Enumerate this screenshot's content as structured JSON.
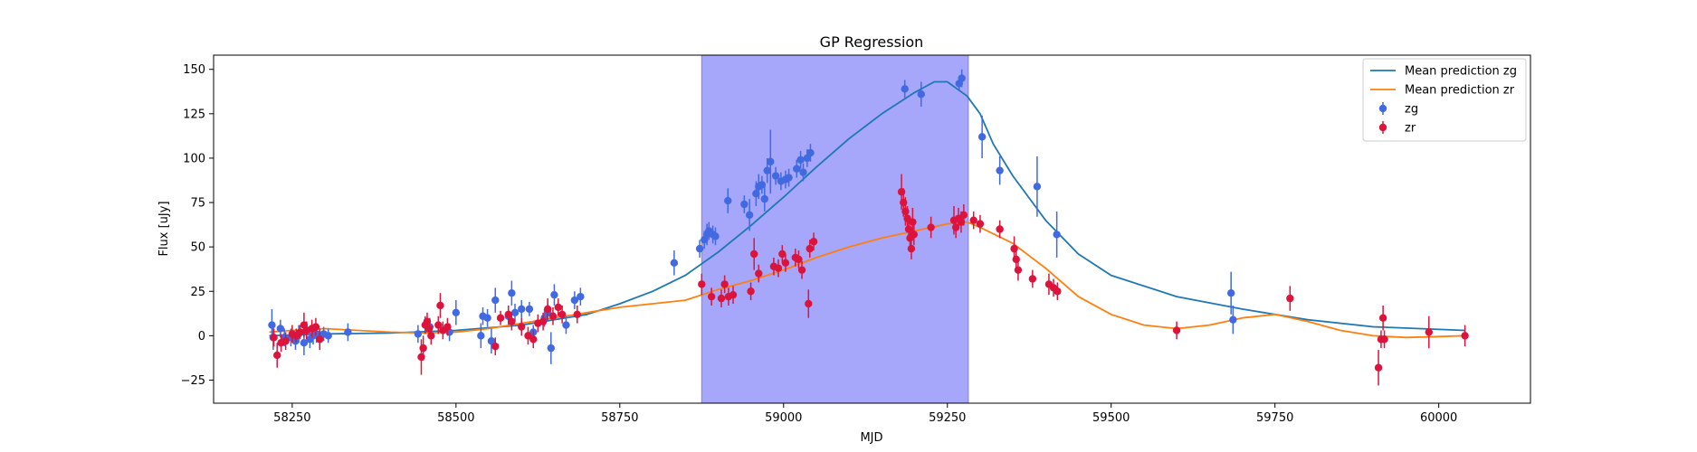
{
  "chart_data": {
    "type": "scatter",
    "title": "GP Regression",
    "xlabel": "MJD",
    "ylabel": "Flux [uJy]",
    "xlim": [
      58130,
      60140
    ],
    "ylim": [
      -38,
      158
    ],
    "x_ticks": [
      58250,
      58500,
      58750,
      59000,
      59250,
      59500,
      59750,
      60000
    ],
    "y_ticks": [
      -25,
      0,
      25,
      50,
      75,
      100,
      125,
      150
    ],
    "x_tick_labels": [
      "58250",
      "58500",
      "58750",
      "59000",
      "59250",
      "59500",
      "59750",
      "60000"
    ],
    "y_tick_labels": [
      "−25",
      "0",
      "25",
      "50",
      "75",
      "100",
      "125",
      "150"
    ],
    "grid": false,
    "legend_placement": "top-right",
    "shaded_region": {
      "x_start": 58875,
      "x_end": 59282,
      "color": "#a6a6fb"
    },
    "series": [
      {
        "name": "Mean prediction zg",
        "kind": "line",
        "color": "#1f77b4",
        "x": [
          58215,
          58300,
          58400,
          58500,
          58600,
          58700,
          58750,
          58800,
          58850,
          58900,
          58950,
          59000,
          59050,
          59100,
          59150,
          59200,
          59230,
          59250,
          59280,
          59300,
          59320,
          59350,
          59400,
          59450,
          59500,
          59600,
          59700,
          59800,
          59900,
          60040
        ],
        "y": [
          0,
          1,
          1.5,
          3,
          6,
          12,
          18,
          25,
          34,
          47,
          62,
          78,
          95,
          111,
          125,
          137,
          143,
          143,
          135,
          125,
          108,
          90,
          65,
          46,
          34,
          22,
          15,
          9,
          5,
          3
        ]
      },
      {
        "name": "Mean prediction zr",
        "kind": "line",
        "color": "#ff7f0e",
        "x": [
          58215,
          58250,
          58300,
          58350,
          58400,
          58450,
          58500,
          58550,
          58600,
          58650,
          58700,
          58750,
          58800,
          58850,
          58875,
          58900,
          58950,
          59000,
          59050,
          59100,
          59150,
          59200,
          59250,
          59280,
          59300,
          59350,
          59400,
          59450,
          59500,
          59550,
          59600,
          59650,
          59700,
          59750,
          59800,
          59850,
          59900,
          59950,
          60000,
          60040
        ],
        "y": [
          2,
          3,
          4,
          3,
          2,
          1.5,
          2,
          4,
          7,
          10,
          13,
          16,
          18,
          20,
          23,
          26,
          31,
          37,
          44,
          50,
          55,
          59,
          63,
          64,
          61,
          52,
          38,
          22,
          12,
          6,
          4,
          6,
          10,
          12,
          8,
          3,
          0,
          -1,
          -0.5,
          0
        ]
      },
      {
        "name": "zg",
        "kind": "errorbar",
        "color": "#4169e1",
        "points": [
          [
            58219,
            6,
            9
          ],
          [
            58221,
            -1,
            7
          ],
          [
            58232,
            4,
            5
          ],
          [
            58238,
            -1,
            5
          ],
          [
            58248,
            -1,
            5
          ],
          [
            58255,
            -3,
            5
          ],
          [
            58260,
            1,
            5
          ],
          [
            58268,
            -4,
            7
          ],
          [
            58272,
            3,
            5
          ],
          [
            58277,
            -2,
            5
          ],
          [
            58282,
            0,
            5
          ],
          [
            58287,
            1,
            5
          ],
          [
            58298,
            1,
            4
          ],
          [
            58305,
            0,
            4
          ],
          [
            58335,
            2,
            5
          ],
          [
            58442,
            1,
            5
          ],
          [
            58460,
            5,
            5
          ],
          [
            58490,
            2,
            5
          ],
          [
            58500,
            13,
            7
          ],
          [
            58538,
            0,
            7
          ],
          [
            58541,
            11,
            5
          ],
          [
            58548,
            10,
            5
          ],
          [
            58554,
            -3,
            7
          ],
          [
            58560,
            20,
            7
          ],
          [
            58580,
            11,
            5
          ],
          [
            58585,
            24,
            7
          ],
          [
            58590,
            13,
            5
          ],
          [
            58600,
            15,
            5
          ],
          [
            58612,
            15,
            4
          ],
          [
            58618,
            2,
            4
          ],
          [
            58635,
            10,
            5
          ],
          [
            58640,
            13,
            5
          ],
          [
            58645,
            -7,
            9
          ],
          [
            58650,
            23,
            6
          ],
          [
            58668,
            6,
            5
          ],
          [
            58681,
            20,
            5
          ],
          [
            58690,
            22,
            5
          ],
          [
            58833,
            41,
            7
          ],
          [
            58872,
            49,
            5
          ],
          [
            58879,
            54,
            5
          ],
          [
            58883,
            57,
            6
          ],
          [
            58886,
            59,
            5
          ],
          [
            58892,
            57,
            5
          ],
          [
            58896,
            56,
            5
          ],
          [
            58915,
            76,
            7
          ],
          [
            58940,
            74,
            5
          ],
          [
            58948,
            68,
            9
          ],
          [
            58958,
            80,
            7
          ],
          [
            58962,
            84,
            7
          ],
          [
            58967,
            85,
            5
          ],
          [
            58971,
            77,
            7
          ],
          [
            58975,
            93,
            7
          ],
          [
            58980,
            98,
            18
          ],
          [
            58988,
            90,
            5
          ],
          [
            58996,
            87,
            5
          ],
          [
            59003,
            88,
            5
          ],
          [
            59008,
            89,
            5
          ],
          [
            59020,
            94,
            5
          ],
          [
            59026,
            99,
            5
          ],
          [
            59030,
            92,
            5
          ],
          [
            59036,
            100,
            5
          ],
          [
            59041,
            103,
            5
          ],
          [
            59185,
            139,
            5
          ],
          [
            59210,
            136,
            7
          ],
          [
            59268,
            142,
            4
          ],
          [
            59272,
            145,
            5
          ],
          [
            59303,
            112,
            12
          ],
          [
            59330,
            93,
            8
          ],
          [
            59387,
            84,
            17
          ],
          [
            59417,
            57,
            13
          ],
          [
            59683,
            24,
            12
          ],
          [
            59686,
            9,
            8
          ]
        ]
      },
      {
        "name": "zr",
        "kind": "errorbar",
        "color": "#dc143c",
        "points": [
          [
            58222,
            -1,
            5
          ],
          [
            58227,
            -11,
            7
          ],
          [
            58233,
            -4,
            5
          ],
          [
            58240,
            -3,
            5
          ],
          [
            58250,
            1,
            5
          ],
          [
            58256,
            0,
            4
          ],
          [
            58262,
            2,
            4
          ],
          [
            58268,
            6,
            7
          ],
          [
            58272,
            3,
            5
          ],
          [
            58280,
            4,
            5
          ],
          [
            58286,
            5,
            5
          ],
          [
            58292,
            -2,
            6
          ],
          [
            58447,
            -12,
            10
          ],
          [
            58450,
            -7,
            7
          ],
          [
            58453,
            6,
            5
          ],
          [
            58456,
            8,
            5
          ],
          [
            58459,
            4,
            5
          ],
          [
            58462,
            0,
            5
          ],
          [
            58473,
            6,
            5
          ],
          [
            58476,
            17,
            7
          ],
          [
            58480,
            3,
            5
          ],
          [
            58487,
            5,
            5
          ],
          [
            58560,
            -6,
            5
          ],
          [
            58568,
            10,
            4
          ],
          [
            58580,
            12,
            5
          ],
          [
            58585,
            8,
            5
          ],
          [
            58600,
            5,
            5
          ],
          [
            58610,
            0,
            5
          ],
          [
            58618,
            -2,
            5
          ],
          [
            58625,
            7,
            5
          ],
          [
            58633,
            8,
            5
          ],
          [
            58640,
            15,
            6
          ],
          [
            58648,
            11,
            5
          ],
          [
            58656,
            16,
            5
          ],
          [
            58662,
            12,
            5
          ],
          [
            58685,
            12,
            5
          ],
          [
            58875,
            29,
            6
          ],
          [
            58890,
            22,
            5
          ],
          [
            58905,
            21,
            5
          ],
          [
            58910,
            29,
            5
          ],
          [
            58916,
            22,
            5
          ],
          [
            58923,
            23,
            5
          ],
          [
            58950,
            25,
            5
          ],
          [
            58955,
            46,
            9
          ],
          [
            58962,
            35,
            5
          ],
          [
            58985,
            39,
            5
          ],
          [
            58992,
            38,
            5
          ],
          [
            58998,
            46,
            5
          ],
          [
            59003,
            41,
            5
          ],
          [
            59018,
            44,
            5
          ],
          [
            59023,
            43,
            5
          ],
          [
            59028,
            37,
            5
          ],
          [
            59038,
            18,
            8
          ],
          [
            59040,
            49,
            5
          ],
          [
            59046,
            53,
            5
          ],
          [
            59180,
            81,
            10
          ],
          [
            59183,
            75,
            8
          ],
          [
            59186,
            70,
            8
          ],
          [
            59189,
            66,
            7
          ],
          [
            59191,
            60,
            7
          ],
          [
            59193,
            55,
            7
          ],
          [
            59195,
            49,
            6
          ],
          [
            59197,
            64,
            8
          ],
          [
            59199,
            57,
            6
          ],
          [
            59225,
            61,
            6
          ],
          [
            59260,
            65,
            8
          ],
          [
            59263,
            61,
            6
          ],
          [
            59267,
            66,
            6
          ],
          [
            59271,
            64,
            6
          ],
          [
            59275,
            68,
            6
          ],
          [
            59290,
            65,
            5
          ],
          [
            59300,
            63,
            5
          ],
          [
            59330,
            60,
            5
          ],
          [
            59352,
            49,
            7
          ],
          [
            59355,
            43,
            6
          ],
          [
            59358,
            37,
            6
          ],
          [
            59380,
            32,
            5
          ],
          [
            59405,
            29,
            6
          ],
          [
            59412,
            27,
            5
          ],
          [
            59418,
            25,
            5
          ],
          [
            59600,
            3,
            5
          ],
          [
            59773,
            21,
            7
          ],
          [
            59908,
            -18,
            10
          ],
          [
            59912,
            -2,
            5
          ],
          [
            59915,
            10,
            7
          ],
          [
            59917,
            -2,
            5
          ],
          [
            59985,
            2,
            9
          ],
          [
            60040,
            0,
            6
          ]
        ]
      }
    ]
  }
}
